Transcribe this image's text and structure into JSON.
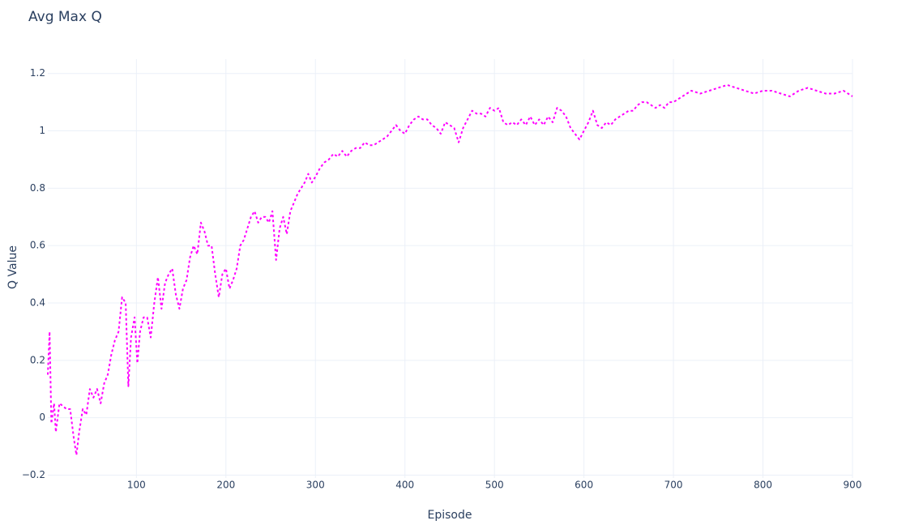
{
  "chart_data": {
    "type": "line",
    "title": "Avg Max Q",
    "x_label": "Episode",
    "y_label": "Q Value",
    "x": [
      1,
      3,
      5,
      8,
      10,
      14,
      18,
      22,
      26,
      30,
      33,
      36,
      40,
      44,
      48,
      52,
      56,
      60,
      64,
      68,
      72,
      76,
      80,
      84,
      88,
      91,
      94,
      98,
      101,
      104,
      108,
      112,
      116,
      120,
      124,
      128,
      132,
      136,
      140,
      144,
      148,
      152,
      156,
      160,
      164,
      168,
      172,
      176,
      180,
      184,
      188,
      192,
      196,
      200,
      204,
      208,
      212,
      216,
      220,
      224,
      228,
      232,
      236,
      240,
      244,
      248,
      252,
      256,
      260,
      264,
      268,
      272,
      276,
      280,
      284,
      288,
      292,
      296,
      300,
      305,
      310,
      315,
      320,
      325,
      330,
      335,
      340,
      345,
      350,
      355,
      360,
      365,
      370,
      375,
      380,
      385,
      390,
      395,
      400,
      405,
      410,
      415,
      420,
      425,
      430,
      435,
      440,
      445,
      450,
      455,
      460,
      465,
      470,
      475,
      480,
      485,
      490,
      495,
      500,
      505,
      510,
      515,
      520,
      525,
      530,
      535,
      540,
      545,
      550,
      555,
      560,
      565,
      570,
      575,
      580,
      585,
      590,
      595,
      600,
      605,
      610,
      615,
      620,
      625,
      630,
      635,
      640,
      645,
      650,
      655,
      660,
      665,
      670,
      675,
      680,
      685,
      690,
      695,
      700,
      710,
      720,
      730,
      740,
      750,
      760,
      770,
      780,
      790,
      800,
      810,
      820,
      830,
      840,
      850,
      860,
      870,
      880,
      890,
      900
    ],
    "values": [
      0.15,
      0.3,
      -0.02,
      0.05,
      -0.05,
      0.05,
      0.04,
      0.03,
      0.03,
      -0.07,
      -0.13,
      -0.05,
      0.03,
      0.01,
      0.1,
      0.07,
      0.1,
      0.05,
      0.12,
      0.15,
      0.22,
      0.27,
      0.3,
      0.42,
      0.4,
      0.11,
      0.28,
      0.35,
      0.19,
      0.3,
      0.35,
      0.35,
      0.28,
      0.4,
      0.49,
      0.38,
      0.47,
      0.5,
      0.52,
      0.43,
      0.38,
      0.45,
      0.48,
      0.56,
      0.6,
      0.57,
      0.68,
      0.65,
      0.6,
      0.6,
      0.5,
      0.42,
      0.5,
      0.52,
      0.45,
      0.48,
      0.52,
      0.6,
      0.62,
      0.66,
      0.7,
      0.72,
      0.68,
      0.7,
      0.7,
      0.68,
      0.72,
      0.55,
      0.66,
      0.7,
      0.64,
      0.72,
      0.75,
      0.78,
      0.8,
      0.82,
      0.85,
      0.82,
      0.84,
      0.87,
      0.89,
      0.9,
      0.92,
      0.91,
      0.93,
      0.91,
      0.93,
      0.94,
      0.94,
      0.96,
      0.95,
      0.95,
      0.96,
      0.97,
      0.98,
      1.0,
      1.02,
      1.0,
      0.99,
      1.02,
      1.04,
      1.05,
      1.04,
      1.04,
      1.02,
      1.01,
      0.99,
      1.03,
      1.02,
      1.01,
      0.96,
      1.01,
      1.04,
      1.07,
      1.06,
      1.06,
      1.05,
      1.08,
      1.07,
      1.08,
      1.03,
      1.02,
      1.03,
      1.02,
      1.04,
      1.02,
      1.05,
      1.02,
      1.04,
      1.02,
      1.05,
      1.03,
      1.08,
      1.07,
      1.05,
      1.01,
      0.99,
      0.97,
      1.0,
      1.03,
      1.07,
      1.02,
      1.01,
      1.03,
      1.02,
      1.04,
      1.05,
      1.06,
      1.07,
      1.07,
      1.09,
      1.1,
      1.1,
      1.09,
      1.08,
      1.09,
      1.08,
      1.1,
      1.1,
      1.12,
      1.14,
      1.13,
      1.14,
      1.15,
      1.16,
      1.15,
      1.14,
      1.13,
      1.14,
      1.14,
      1.13,
      1.12,
      1.14,
      1.15,
      1.14,
      1.13,
      1.13,
      1.14,
      1.12
    ],
    "color": "#ff00ff",
    "dash": true,
    "xlim": [
      1,
      900
    ],
    "xticks": [
      100,
      200,
      300,
      400,
      500,
      600,
      700,
      800,
      900
    ],
    "ylim": [
      -0.21,
      1.25
    ],
    "yticks": [
      {
        "value": -0.2,
        "label": "−0.2"
      },
      0,
      0.2,
      0.4,
      0.6,
      0.8,
      1,
      1.2
    ],
    "grid": true
  }
}
